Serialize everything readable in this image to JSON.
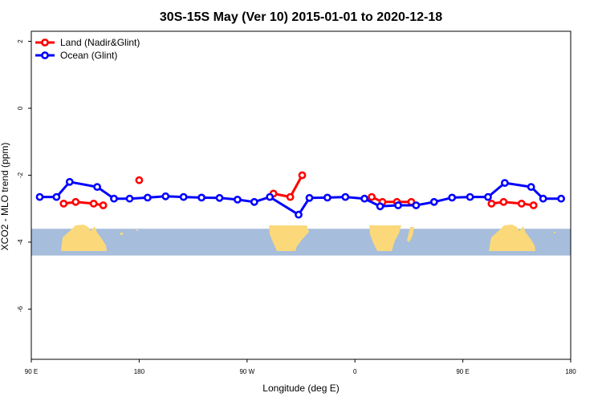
{
  "chart_data": {
    "type": "line",
    "title": "30S-15S May (Ver 10)   2015-01-01 to 2020-12-18",
    "xlabel": "Longitude (deg E)",
    "ylabel": "XCO2 - MLO trend (ppm)",
    "xlim": [
      90,
      540
    ],
    "ylim": [
      -7.5,
      2.3
    ],
    "x_ticks": [
      {
        "value": 90,
        "label": "90 E"
      },
      {
        "value": 180,
        "label": "180"
      },
      {
        "value": 270,
        "label": "90 W"
      },
      {
        "value": 360,
        "label": "0"
      },
      {
        "value": 450,
        "label": "90 E"
      },
      {
        "value": 540,
        "label": "180"
      }
    ],
    "y_ticks": [
      {
        "value": 2,
        "label": "2"
      },
      {
        "value": 0,
        "label": "0"
      },
      {
        "value": -2,
        "label": "-2"
      },
      {
        "value": -4,
        "label": "-4"
      },
      {
        "value": -6,
        "label": "-6"
      }
    ],
    "legend": {
      "position": "top-left"
    },
    "map_band": {
      "y_range": [
        -4.4,
        -3.6
      ],
      "ocean_color": "#a6bddb",
      "land_color": "#fbd97a"
    },
    "series": [
      {
        "name": "Land (Nadir&Glint)",
        "color": "#ff0000",
        "segments": [
          [
            [
              117,
              -2.85
            ],
            [
              127,
              -2.8
            ],
            [
              142,
              -2.85
            ],
            [
              150,
              -2.9
            ]
          ],
          [
            [
              180,
              -2.15
            ]
          ],
          [
            [
              292,
              -2.55
            ],
            [
              306,
              -2.65
            ],
            [
              316,
              -2.0
            ]
          ],
          [
            [
              374,
              -2.65
            ],
            [
              383,
              -2.8
            ],
            [
              395,
              -2.8
            ],
            [
              407,
              -2.8
            ]
          ],
          [
            [
              474,
              -2.85
            ],
            [
              484,
              -2.8
            ],
            [
              499,
              -2.85
            ],
            [
              509,
              -2.9
            ]
          ]
        ]
      },
      {
        "name": "Ocean (Glint)",
        "color": "#0000ff",
        "segments": [
          [
            [
              97,
              -2.65
            ],
            [
              111,
              -2.65
            ],
            [
              122,
              -2.2
            ],
            [
              145,
              -2.35
            ],
            [
              159,
              -2.7
            ],
            [
              172,
              -2.7
            ],
            [
              187,
              -2.67
            ],
            [
              202,
              -2.63
            ],
            [
              217,
              -2.65
            ],
            [
              232,
              -2.67
            ],
            [
              247,
              -2.68
            ],
            [
              262,
              -2.73
            ],
            [
              276,
              -2.8
            ],
            [
              289,
              -2.65
            ],
            [
              313,
              -3.18
            ],
            [
              322,
              -2.68
            ],
            [
              337,
              -2.67
            ],
            [
              352,
              -2.65
            ],
            [
              368,
              -2.7
            ],
            [
              381,
              -2.93
            ],
            [
              396,
              -2.9
            ],
            [
              411,
              -2.9
            ],
            [
              426,
              -2.8
            ],
            [
              441,
              -2.67
            ],
            [
              456,
              -2.65
            ],
            [
              471,
              -2.65
            ],
            [
              485,
              -2.23
            ],
            [
              507,
              -2.35
            ],
            [
              517,
              -2.7
            ],
            [
              532,
              -2.7
            ]
          ]
        ]
      }
    ]
  }
}
